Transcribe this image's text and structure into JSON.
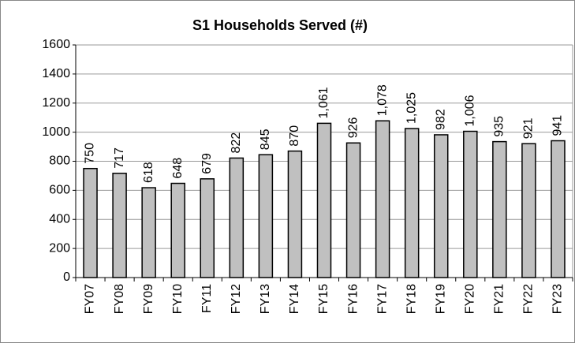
{
  "chart_data": {
    "type": "bar",
    "title": "S1 Households Served (#)",
    "categories": [
      "FY07",
      "FY08",
      "FY09",
      "FY10",
      "FY11",
      "FY12",
      "FY13",
      "FY14",
      "FY15",
      "FY16",
      "FY17",
      "FY18",
      "FY19",
      "FY20",
      "FY21",
      "FY22",
      "FY23"
    ],
    "values": [
      750,
      717,
      618,
      648,
      679,
      822,
      845,
      870,
      1061,
      926,
      1078,
      1025,
      982,
      1006,
      935,
      921,
      941
    ],
    "value_labels": [
      "750",
      "717",
      "618",
      "648",
      "679",
      "822",
      "845",
      "870",
      "1,061",
      "926",
      "1,078",
      "1,025",
      "982",
      "1,006",
      "935",
      "921",
      "941"
    ],
    "color": "#c0c0c0",
    "ylim": [
      0,
      1600
    ],
    "yticks": [
      0,
      200,
      400,
      600,
      800,
      1000,
      1200,
      1400,
      1600
    ],
    "grid": true
  }
}
